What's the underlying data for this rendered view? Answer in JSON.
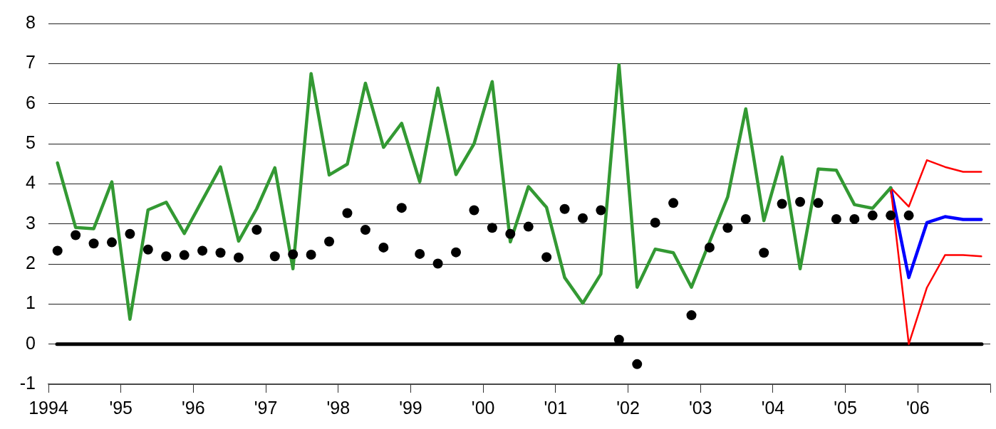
{
  "chart_data": {
    "type": "line",
    "xlim": [
      1994,
      2007
    ],
    "ylim": [
      -1,
      8
    ],
    "xticks": [
      {
        "value": 1994,
        "label": "1994"
      },
      {
        "value": 1995,
        "label": "'95"
      },
      {
        "value": 1996,
        "label": "'96"
      },
      {
        "value": 1997,
        "label": "'97"
      },
      {
        "value": 1998,
        "label": "'98"
      },
      {
        "value": 1999,
        "label": "'99"
      },
      {
        "value": 2000,
        "label": "'00"
      },
      {
        "value": 2001,
        "label": "'01"
      },
      {
        "value": 2002,
        "label": "'02"
      },
      {
        "value": 2003,
        "label": "'03"
      },
      {
        "value": 2004,
        "label": "'04"
      },
      {
        "value": 2005,
        "label": "'05"
      },
      {
        "value": 2006,
        "label": "'06"
      },
      {
        "value": 2007,
        "label": null
      }
    ],
    "yticks": [
      -1,
      0,
      1,
      2,
      3,
      4,
      5,
      6,
      7,
      8
    ],
    "grid": "y",
    "legend": false,
    "marker": "none",
    "ref_lines": [
      {
        "axis": "y",
        "value": 0,
        "color": "#000000"
      }
    ],
    "series": [
      {
        "color": "#339933",
        "x": [
          1994.125,
          1994.375,
          1994.625,
          1994.875,
          1995.125,
          1995.375,
          1995.625,
          1995.875,
          1996.125,
          1996.375,
          1996.625,
          1996.875,
          1997.125,
          1997.375,
          1997.625,
          1997.875,
          1998.125,
          1998.375,
          1998.625,
          1998.875,
          1999.125,
          1999.375,
          1999.625,
          1999.875,
          2000.125,
          2000.375,
          2000.625,
          2000.875,
          2001.125,
          2001.375,
          2001.625,
          2001.875,
          2002.125,
          2002.375,
          2002.625,
          2002.875,
          2003.125,
          2003.375,
          2003.625,
          2003.875,
          2004.125,
          2004.375,
          2004.625,
          2004.875,
          2005.125,
          2005.375,
          2005.625
        ],
        "values": [
          4.52,
          2.91,
          2.88,
          4.05,
          0.62,
          3.35,
          3.54,
          2.76,
          3.59,
          4.42,
          2.57,
          3.38,
          4.4,
          1.88,
          6.75,
          4.22,
          4.49,
          6.51,
          4.91,
          5.51,
          4.05,
          6.39,
          4.23,
          5.0,
          6.55,
          2.55,
          3.93,
          3.41,
          1.66,
          1.02,
          1.75,
          6.97,
          1.42,
          2.37,
          2.28,
          1.42,
          2.55,
          3.67,
          5.87,
          3.08,
          4.67,
          1.88,
          4.37,
          4.34,
          3.48,
          3.39,
          3.9
        ]
      },
      {
        "type": "scatter",
        "marker": "circle",
        "color": "#000000",
        "x": [
          1994.125,
          1994.375,
          1994.625,
          1994.875,
          1995.125,
          1995.375,
          1995.625,
          1995.875,
          1996.125,
          1996.375,
          1996.625,
          1996.875,
          1997.125,
          1997.375,
          1997.625,
          1997.875,
          1998.125,
          1998.375,
          1998.625,
          1998.875,
          1999.125,
          1999.375,
          1999.625,
          1999.875,
          2000.125,
          2000.375,
          2000.625,
          2000.875,
          2001.125,
          2001.375,
          2001.625,
          2001.875,
          2002.125,
          2002.375,
          2002.625,
          2002.875,
          2003.125,
          2003.375,
          2003.625,
          2003.875,
          2004.125,
          2004.375,
          2004.625,
          2004.875,
          2005.125,
          2005.375,
          2005.625,
          2005.875
        ],
        "values": [
          2.33,
          2.72,
          2.51,
          2.54,
          2.75,
          2.36,
          2.19,
          2.22,
          2.33,
          2.28,
          2.16,
          2.85,
          2.19,
          2.24,
          2.23,
          2.56,
          3.27,
          2.85,
          2.41,
          3.4,
          2.25,
          2.01,
          2.29,
          3.34,
          2.9,
          2.75,
          2.93,
          2.17,
          3.37,
          3.14,
          3.34,
          0.11,
          -0.5,
          3.03,
          3.52,
          0.72,
          2.41,
          2.9,
          3.12,
          2.28,
          3.5,
          3.55,
          3.52,
          3.12,
          3.12,
          3.21,
          3.21,
          3.21
        ]
      },
      {
        "color": "#ff0000",
        "x": [
          2005.625,
          2005.875,
          2006.125,
          2006.375,
          2006.625,
          2006.875
        ],
        "values": [
          3.9,
          3.43,
          4.59,
          4.42,
          4.3,
          4.3
        ]
      },
      {
        "color": "#ff0000",
        "x": [
          2005.625,
          2005.875,
          2006.125,
          2006.375,
          2006.625,
          2006.875
        ],
        "values": [
          3.9,
          0.0,
          1.41,
          2.22,
          2.22,
          2.19
        ]
      },
      {
        "color": "#0000ff",
        "x": [
          2005.625,
          2005.875,
          2006.125,
          2006.375,
          2006.625,
          2006.875
        ],
        "values": [
          3.9,
          1.66,
          3.03,
          3.18,
          3.11,
          3.11
        ]
      }
    ]
  }
}
